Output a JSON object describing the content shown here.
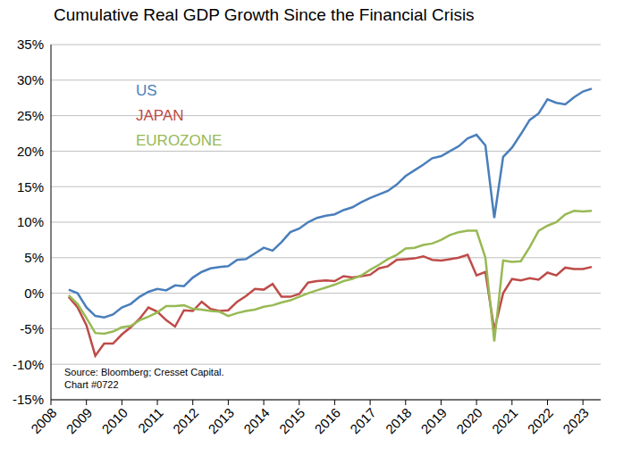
{
  "chart_data": {
    "type": "line",
    "title": "Cumulative Real GDP Growth Since the Financial Crisis",
    "annotations": [
      "Source: Bloomberg; Cresset Capital.",
      "Chart #0722"
    ],
    "x": [
      2008.5,
      2008.75,
      2009,
      2009.25,
      2009.5,
      2009.75,
      2010,
      2010.25,
      2010.5,
      2010.75,
      2011,
      2011.25,
      2011.5,
      2011.75,
      2012,
      2012.25,
      2012.5,
      2012.75,
      2013,
      2013.25,
      2013.5,
      2013.75,
      2014,
      2014.25,
      2014.5,
      2014.75,
      2015,
      2015.25,
      2015.5,
      2015.75,
      2016,
      2016.25,
      2016.5,
      2016.75,
      2017,
      2017.25,
      2017.5,
      2017.75,
      2018,
      2018.25,
      2018.5,
      2018.75,
      2019,
      2019.25,
      2019.5,
      2019.75,
      2020,
      2020.25,
      2020.5,
      2020.75,
      2021,
      2021.25,
      2021.5,
      2021.75,
      2022,
      2022.25,
      2022.5,
      2022.75,
      2023,
      2023.25
    ],
    "series": [
      {
        "name": "US",
        "color": "#4a7ebb",
        "values": [
          0.5,
          0.0,
          -2.0,
          -3.2,
          -3.4,
          -3.0,
          -2.0,
          -1.5,
          -0.5,
          0.2,
          0.6,
          0.4,
          1.1,
          1.0,
          2.2,
          3.0,
          3.5,
          3.7,
          3.8,
          4.7,
          4.8,
          5.6,
          6.4,
          6.0,
          7.2,
          8.6,
          9.1,
          10.0,
          10.6,
          10.9,
          11.1,
          11.7,
          12.1,
          12.8,
          13.4,
          13.9,
          14.4,
          15.3,
          16.5,
          17.3,
          18.1,
          19.0,
          19.3,
          20.0,
          20.7,
          21.8,
          22.3,
          20.8,
          10.6,
          19.2,
          20.5,
          22.4,
          24.4,
          25.3,
          27.3,
          26.8,
          26.6,
          27.6,
          28.4,
          28.8
        ]
      },
      {
        "name": "JAPAN",
        "color": "#be4b48",
        "values": [
          -0.5,
          -2.0,
          -4.5,
          -8.8,
          -7.1,
          -7.1,
          -5.8,
          -4.8,
          -3.6,
          -2.0,
          -2.6,
          -3.8,
          -4.7,
          -2.4,
          -2.5,
          -1.2,
          -2.2,
          -2.5,
          -2.4,
          -1.2,
          -0.4,
          0.6,
          0.5,
          1.3,
          -0.5,
          -0.5,
          -0.1,
          1.5,
          1.7,
          1.8,
          1.7,
          2.4,
          2.2,
          2.4,
          2.6,
          3.5,
          3.8,
          4.7,
          4.8,
          4.9,
          5.2,
          4.7,
          4.6,
          4.8,
          5.0,
          5.4,
          2.5,
          3.0,
          -5.2,
          0.0,
          2.0,
          1.8,
          2.1,
          1.9,
          2.9,
          2.5,
          3.6,
          3.4,
          3.4,
          3.7
        ]
      },
      {
        "name": "EUROZONE",
        "color": "#98b954",
        "values": [
          -0.3,
          -1.5,
          -3.5,
          -5.6,
          -5.7,
          -5.4,
          -4.8,
          -4.6,
          -3.8,
          -3.3,
          -2.7,
          -1.8,
          -1.8,
          -1.7,
          -2.2,
          -2.3,
          -2.5,
          -2.6,
          -3.2,
          -2.8,
          -2.5,
          -2.3,
          -1.9,
          -1.7,
          -1.3,
          -1.0,
          -0.5,
          0.0,
          0.4,
          0.8,
          1.2,
          1.7,
          2.0,
          2.5,
          3.3,
          4.0,
          4.8,
          5.4,
          6.3,
          6.4,
          6.8,
          7.0,
          7.5,
          8.2,
          8.6,
          8.8,
          8.8,
          5.0,
          -6.8,
          4.6,
          4.4,
          4.5,
          6.5,
          8.8,
          9.5,
          10.0,
          11.1,
          11.6,
          11.5,
          11.6
        ]
      }
    ],
    "xlim": [
      2008,
      2023.5
    ],
    "xticks": [
      2008,
      2009,
      2010,
      2011,
      2012,
      2013,
      2014,
      2015,
      2016,
      2017,
      2018,
      2019,
      2020,
      2021,
      2022,
      2023
    ],
    "ylim": [
      -15,
      35
    ],
    "yticks": [
      {
        "value": -15,
        "label": "-15%"
      },
      {
        "value": -10,
        "label": "-10%"
      },
      {
        "value": -5,
        "label": "-5%"
      },
      {
        "value": 0,
        "label": "0%"
      },
      {
        "value": 5,
        "label": "5%"
      },
      {
        "value": 10,
        "label": "10%"
      },
      {
        "value": 15,
        "label": "15%"
      },
      {
        "value": 20,
        "label": "20%"
      },
      {
        "value": 25,
        "label": "25%"
      },
      {
        "value": 30,
        "label": "30%"
      },
      {
        "value": 35,
        "label": "35%"
      }
    ],
    "grid": true,
    "legend": "top-left"
  }
}
